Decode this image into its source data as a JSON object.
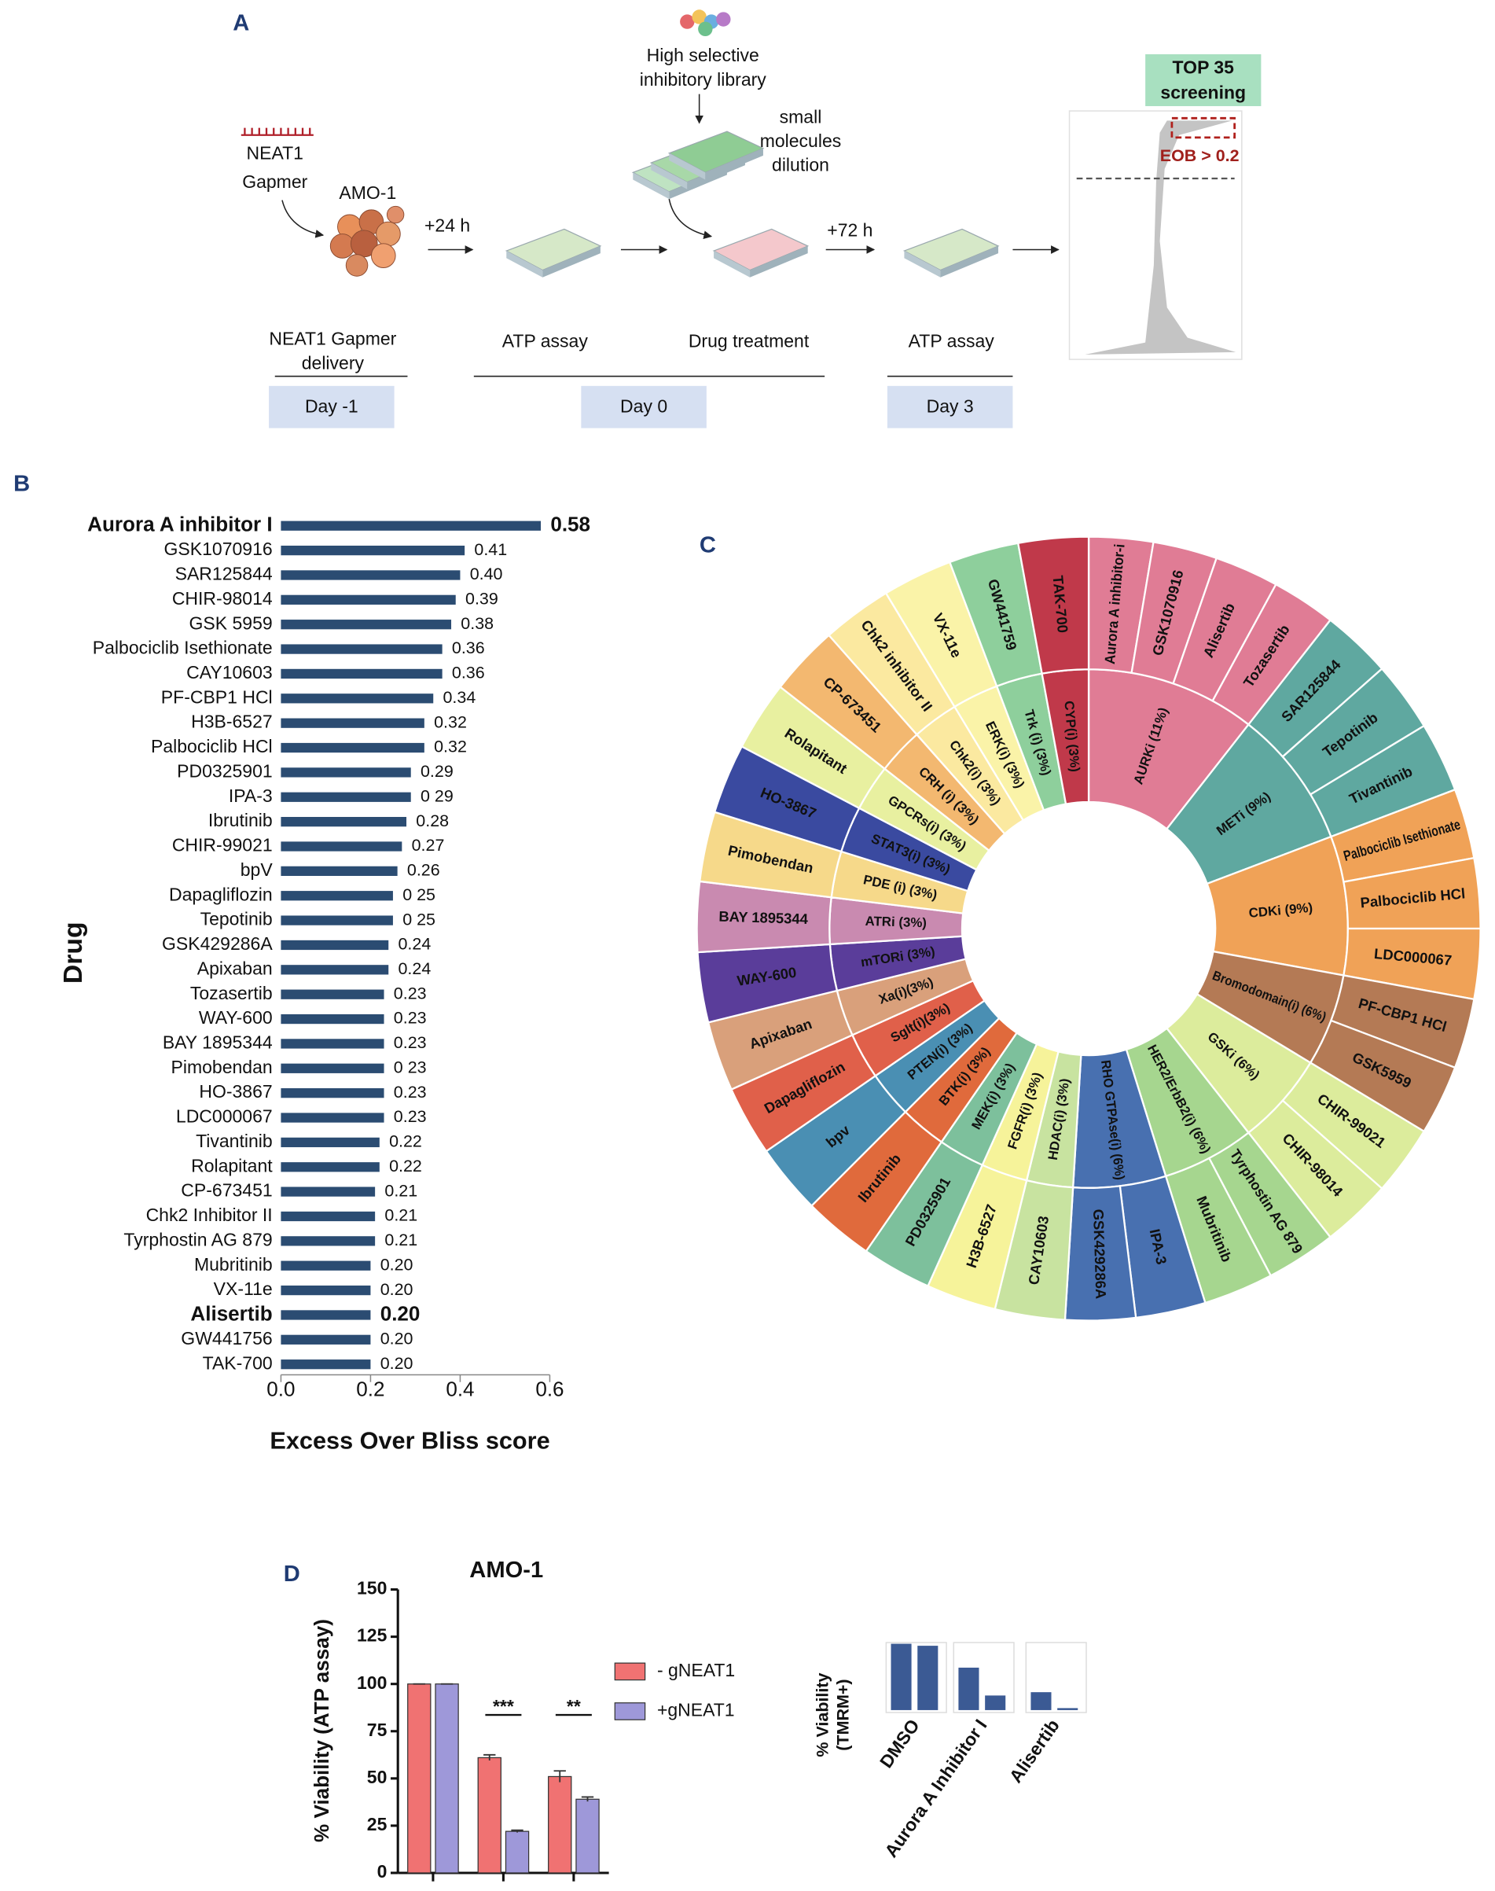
{
  "panel_a": {
    "letter": "A",
    "library": [
      "High selective",
      "inhibitory library"
    ],
    "gapmer": [
      "NEAT1",
      "Gapmer"
    ],
    "cell_line": "AMO-1",
    "step1": "+24 h",
    "dilution": [
      "small",
      "molecules",
      "dilution"
    ],
    "step2": "+72 h",
    "top": [
      "TOP 35",
      "screening"
    ],
    "threshold": "EOB > 0.2",
    "stage_labels": [
      [
        "NEAT1 Gapmer",
        "delivery"
      ],
      [
        "ATP assay"
      ],
      [
        "Drug treatment"
      ],
      [
        "ATP assay"
      ]
    ],
    "days": [
      "Day -1",
      "Day 0",
      "Day 3"
    ]
  },
  "chart_data": [
    {
      "type": "hbar",
      "letter": "B",
      "categories": [
        "Aurora A inhibitor I",
        "GSK1070916",
        "SAR125844",
        "CHIR-98014",
        "GSK 5959",
        "Palbociclib Isethionate",
        "CAY10603",
        "PF-CBP1 HCl",
        "H3B-6527",
        "Palbociclib HCl",
        "PD0325901",
        "IPA-3",
        "Ibrutinib",
        "CHIR-99021",
        "bpV",
        "Dapagliflozin",
        "Tepotinib",
        "GSK429286A",
        "Apixaban",
        "Tozasertib",
        "WAY-600",
        "BAY 1895344",
        "Pimobendan",
        "HO-3867",
        "LDC000067",
        "Tivantinib",
        "Rolapitant",
        "CP-673451",
        "Chk2 Inhibitor II",
        "Tyrphostin AG 879",
        "Mubritinib",
        "VX-11e",
        "Alisertib",
        "GW441756",
        "TAK-700"
      ],
      "values": [
        0.58,
        0.41,
        0.4,
        0.39,
        0.38,
        0.36,
        0.36,
        0.34,
        0.32,
        0.32,
        0.29,
        0.29,
        0.28,
        0.27,
        0.26,
        0.25,
        0.25,
        0.24,
        0.24,
        0.23,
        0.23,
        0.23,
        0.23,
        0.23,
        0.23,
        0.22,
        0.22,
        0.21,
        0.21,
        0.21,
        0.2,
        0.2,
        0.2,
        0.2,
        0.2
      ],
      "value_labels": [
        "0.58",
        "0.41",
        "0.40",
        "0.39",
        "0.38",
        "0.36",
        "0.36",
        "0.34",
        "0.32",
        "0.32",
        "0.29",
        "0 29",
        "0.28",
        "0.27",
        "0.26",
        "0 25",
        "0 25",
        "0.24",
        "0.24",
        "0.23",
        "0.23",
        "0.23",
        "0 23",
        "0.23",
        "0.23",
        "0.22",
        "0.22",
        "0.21",
        "0.21",
        "0.21",
        "0.20",
        "0.20",
        "0.20",
        "0.20",
        "0.20"
      ],
      "color": "#2b4c72",
      "xlim": [
        0,
        0.6
      ],
      "xticks": [
        {
          "value": 0,
          "label": "0.0"
        },
        0.2,
        0.4,
        0.6
      ],
      "xlabel": "Excess Over Bliss score",
      "ylabel": "Drug",
      "highlight": [
        0,
        32
      ]
    },
    {
      "type": "sunburst",
      "letter": "C",
      "groups": [
        {
          "label": "AURKi (11%)",
          "value": 11,
          "color": "#e07c95",
          "children": [
            "Aurora A inhibitor-i",
            "GSK1070916",
            "Alisertib",
            "Tozasertib"
          ]
        },
        {
          "label": "METi (9%)",
          "value": 9,
          "color": "#5fa8a0",
          "children": [
            "SAR125844",
            "Tepotinib",
            "Tivantinib"
          ]
        },
        {
          "label": "CDKi (9%)",
          "value": 9,
          "color": "#f0a257",
          "children": [
            "Palbociclib Isethionate",
            "Palbociclib HCl",
            "LDC000067"
          ]
        },
        {
          "label": "Bromodomain(i) (6%)",
          "value": 6,
          "color": "#b47a55",
          "children": [
            "PF-CBP1 HCl",
            "GSK5959"
          ]
        },
        {
          "label": "GSKi (6%)",
          "value": 6,
          "color": "#dcec9c",
          "children": [
            "CHIR-99021",
            "CHIR-98014"
          ]
        },
        {
          "label": "HER2/ErbB2(i) (6%)",
          "value": 6,
          "color": "#a6d68f",
          "children": [
            "Tyrphostin AG 879",
            "Mubritinib"
          ]
        },
        {
          "label": "RHO GTPAse(i) (6%)",
          "value": 6,
          "color": "#4870b0",
          "children": [
            "IPA-3",
            "GSK429286A"
          ]
        },
        {
          "label": "HDAC(i) (3%)",
          "value": 3,
          "color": "#c8e3a0",
          "children": [
            "CAY10603"
          ]
        },
        {
          "label": "FGFR(i) (3%)",
          "value": 3,
          "color": "#f6f39a",
          "children": [
            "H3B-6527"
          ]
        },
        {
          "label": "MEK(i) (3%)",
          "value": 3,
          "color": "#7dc09c",
          "children": [
            "PD0325901"
          ]
        },
        {
          "label": "BTK(i) (3%)",
          "value": 3,
          "color": "#e06a3c",
          "children": [
            "Ibrutinib"
          ]
        },
        {
          "label": "PTEN(i) (3%)",
          "value": 3,
          "color": "#4a8fb3",
          "children": [
            "bpv"
          ]
        },
        {
          "label": "Sglt(i)(3%)",
          "value": 3,
          "color": "#e0604a",
          "children": [
            "Dapagliflozin"
          ]
        },
        {
          "label": "Xa(i)(3%)",
          "value": 3,
          "color": "#d9a07b",
          "children": [
            "Apixaban"
          ]
        },
        {
          "label": "mTORi (3%)",
          "value": 3,
          "color": "#5a3d9a",
          "children": [
            "WAY-600"
          ]
        },
        {
          "label": "ATRi (3%)",
          "value": 3,
          "color": "#c98ab0",
          "children": [
            "BAY 1895344"
          ]
        },
        {
          "label": "PDE (i) (3%)",
          "value": 3,
          "color": "#f6d98a",
          "children": [
            "Pimobendan"
          ]
        },
        {
          "label": "STAT3(i) (3%)",
          "value": 3,
          "color": "#3a4aa0",
          "children": [
            "HO-3867"
          ]
        },
        {
          "label": "GPCRs(i) (3%)",
          "value": 3,
          "color": "#e8f0a0",
          "children": [
            "Rolapitant"
          ]
        },
        {
          "label": "CRH (i) (3%)",
          "value": 3,
          "color": "#f3b870",
          "children": [
            "CP-673451"
          ]
        },
        {
          "label": "Chk2(i) (3%)",
          "value": 3,
          "color": "#fbe9a0",
          "children": [
            "Chk2 inhibitor II"
          ]
        },
        {
          "label": "ERK(i) (3%)",
          "value": 3,
          "color": "#faf3a8",
          "children": [
            "VX-11e"
          ]
        },
        {
          "label": "Trk (i) (3%)",
          "value": 3,
          "color": "#8ecf9c",
          "children": [
            "GW441759"
          ]
        },
        {
          "label": "CYP(i) (3%)",
          "value": 3,
          "color": "#c0394a",
          "children": [
            "TAK-700"
          ]
        }
      ]
    },
    {
      "type": "bar",
      "letter": "D",
      "title": "AMO-1",
      "ylabel": "% Viability (ATP assay)",
      "categories": [
        null,
        null,
        null
      ],
      "series": [
        {
          "name": "- gNEAT1",
          "color": "#f07272",
          "values": [
            100,
            61,
            51
          ],
          "errors": [
            0,
            1.5,
            3
          ]
        },
        {
          "name": "+gNEAT1",
          "color": "#9e98d9",
          "values": [
            100,
            22,
            39
          ],
          "errors": [
            0,
            0.6,
            1.2
          ]
        }
      ],
      "ylim": [
        0,
        150
      ],
      "yticks": [
        0,
        25,
        50,
        75,
        100,
        125,
        150
      ],
      "annotations": [
        {
          "text": "***",
          "category": 1
        },
        {
          "text": "**",
          "category": 2
        }
      ],
      "legend": "right"
    },
    {
      "type": "mini_bar",
      "ylabel": [
        "% Viability",
        "(TMRM+)"
      ],
      "categories": [
        "DMSO",
        "Aurora A Inhibitor I",
        "Alisertib"
      ],
      "series": [
        {
          "color": "#3b5a94",
          "values": [
            100,
            64,
            27
          ]
        },
        {
          "color": "#3b5a94",
          "values": [
            97,
            22,
            3
          ]
        }
      ]
    }
  ]
}
